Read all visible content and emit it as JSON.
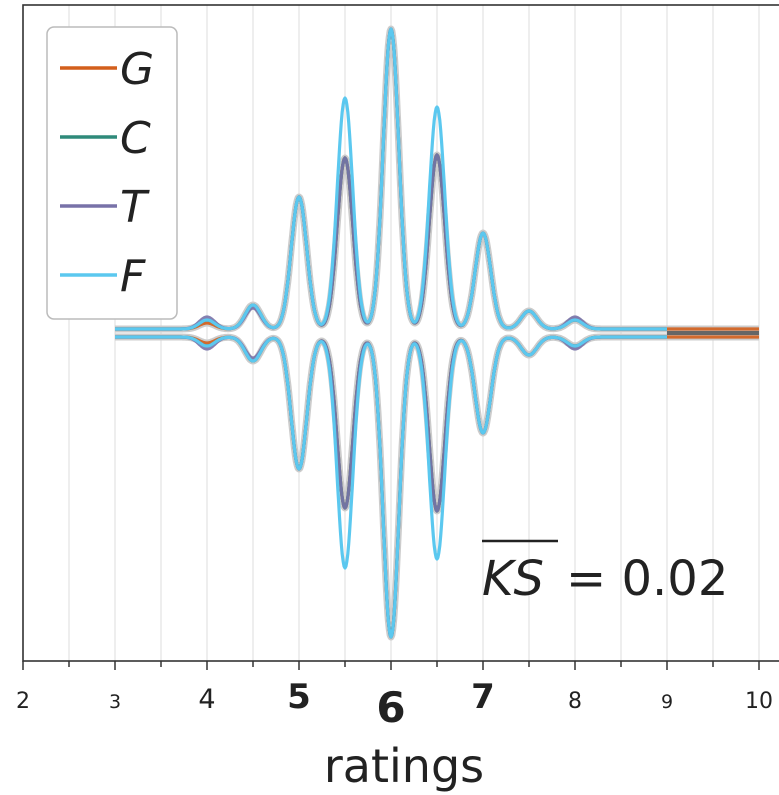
{
  "chart_data": {
    "type": "line",
    "title": "",
    "xlabel": "ratings",
    "ylabel": "",
    "xlim": [
      2,
      10.2
    ],
    "x_ticks": [
      {
        "value": 2,
        "label": "2"
      },
      {
        "value": 3,
        "label": "3"
      },
      {
        "value": 4,
        "label": "4"
      },
      {
        "value": 5,
        "label": "5"
      },
      {
        "value": 6,
        "label": "6"
      },
      {
        "value": 7,
        "label": "7"
      },
      {
        "value": 8,
        "label": "8"
      },
      {
        "value": 9,
        "label": "9"
      },
      {
        "value": 10,
        "label": "10"
      }
    ],
    "grid": true,
    "legend_position": "top-left",
    "mirrored_density": true,
    "series": [
      {
        "name": "G",
        "color": "#d35f1c",
        "peaks": [
          [
            4.0,
            0.02
          ],
          [
            4.5,
            0.08
          ],
          [
            5.0,
            0.44
          ],
          [
            5.5,
            0.57
          ],
          [
            6.0,
            1.0
          ],
          [
            6.5,
            0.58
          ],
          [
            7.0,
            0.32
          ],
          [
            7.5,
            0.06
          ],
          [
            8.0,
            0.03
          ]
        ],
        "x_end": 10
      },
      {
        "name": "C",
        "color": "#2f8a7a",
        "peaks": [
          [
            4.0,
            0.03
          ],
          [
            4.5,
            0.08
          ],
          [
            5.0,
            0.44
          ],
          [
            5.5,
            0.57
          ],
          [
            6.0,
            1.0
          ],
          [
            6.5,
            0.58
          ],
          [
            7.0,
            0.32
          ],
          [
            7.5,
            0.06
          ],
          [
            8.0,
            0.03
          ]
        ],
        "x_end": 9
      },
      {
        "name": "T",
        "color": "#7872a8",
        "peaks": [
          [
            4.0,
            0.04
          ],
          [
            4.5,
            0.07
          ],
          [
            5.0,
            0.44
          ],
          [
            5.5,
            0.57
          ],
          [
            6.0,
            1.0
          ],
          [
            6.5,
            0.58
          ],
          [
            7.0,
            0.32
          ],
          [
            7.5,
            0.06
          ],
          [
            8.0,
            0.04
          ]
        ],
        "x_end": 9
      },
      {
        "name": "F",
        "color": "#5bc8ef",
        "peaks": [
          [
            4.0,
            0.03
          ],
          [
            4.5,
            0.08
          ],
          [
            5.0,
            0.44
          ],
          [
            5.5,
            0.77
          ],
          [
            6.0,
            1.0
          ],
          [
            6.5,
            0.74
          ],
          [
            7.0,
            0.32
          ],
          [
            7.5,
            0.06
          ],
          [
            8.0,
            0.03
          ]
        ],
        "x_end": 9
      }
    ],
    "annotation": {
      "text": "KS",
      "overline": true,
      "suffix": "= 0.02"
    }
  }
}
